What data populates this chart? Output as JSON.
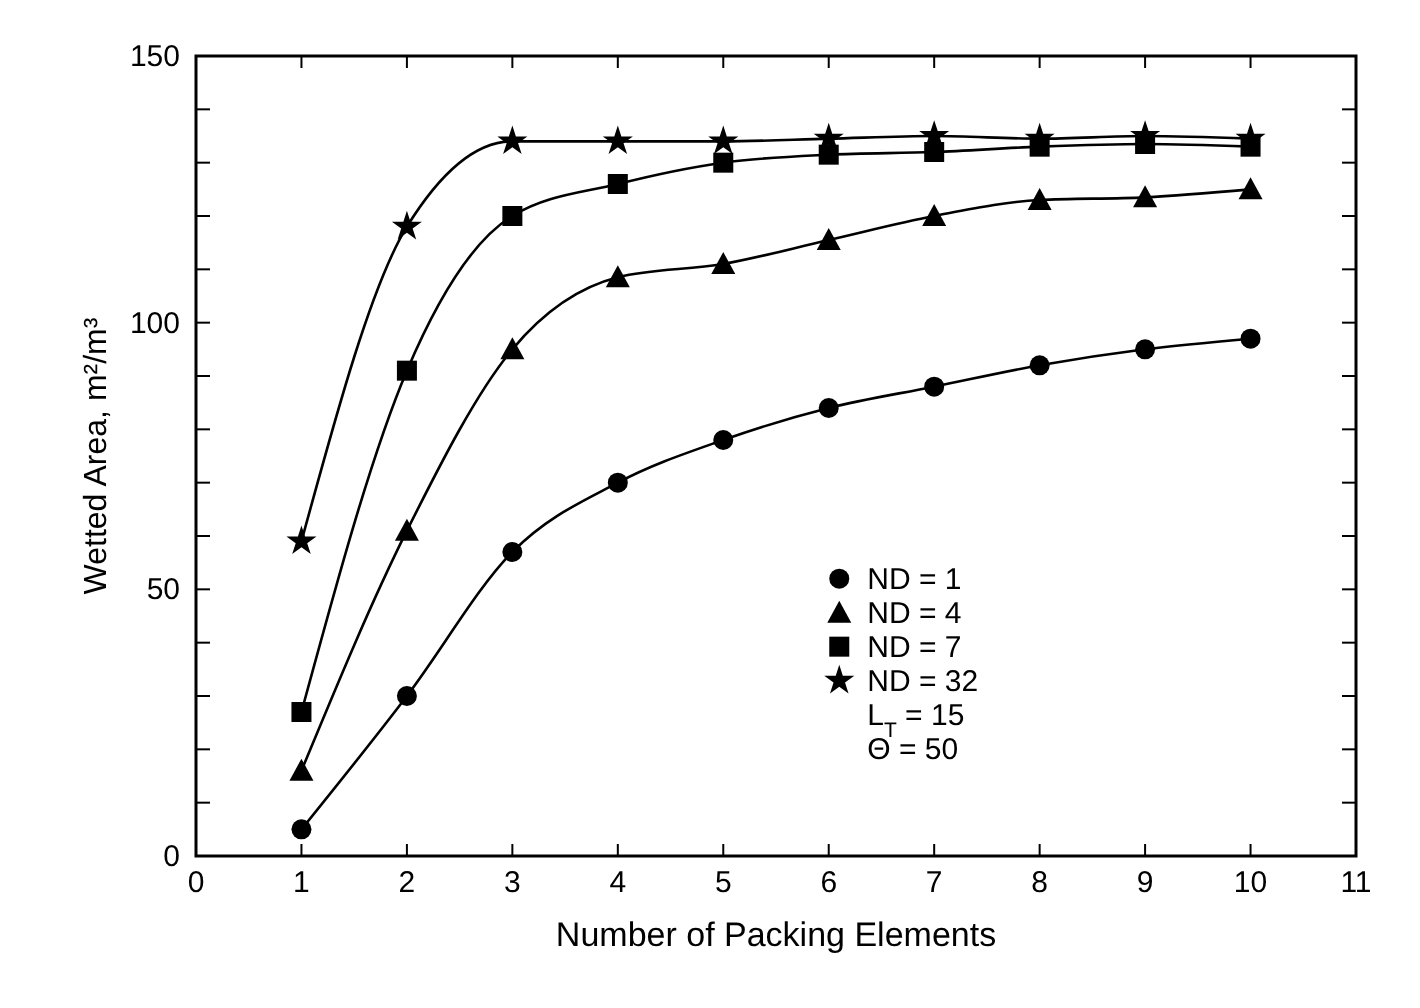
{
  "chart_data": {
    "type": "line",
    "xlabel": "Number of Packing Elements",
    "ylabel": "Wetted Area, m²/m³",
    "x": [
      1,
      2,
      3,
      4,
      5,
      6,
      7,
      8,
      9,
      10
    ],
    "xlim": [
      0,
      11
    ],
    "xticks": [
      0,
      1,
      2,
      3,
      4,
      5,
      6,
      7,
      8,
      9,
      10,
      11
    ],
    "ylim": [
      0,
      150
    ],
    "yticks": [
      0,
      {
        "value": 10,
        "label": null
      },
      {
        "value": 20,
        "label": null
      },
      {
        "value": 30,
        "label": null
      },
      {
        "value": 40,
        "label": null
      },
      50,
      {
        "value": 60,
        "label": null
      },
      {
        "value": 70,
        "label": null
      },
      {
        "value": 80,
        "label": null
      },
      {
        "value": 90,
        "label": null
      },
      100,
      {
        "value": 110,
        "label": null
      },
      {
        "value": 120,
        "label": null
      },
      {
        "value": 130,
        "label": null
      },
      {
        "value": 140,
        "label": null
      },
      150
    ],
    "grid": false,
    "legend": "bottom right",
    "series": [
      {
        "name": "ND = 1",
        "color": "#000000",
        "marker": "circle",
        "values": [
          5,
          30,
          57,
          70,
          78,
          84,
          88,
          92,
          95,
          97
        ]
      },
      {
        "name": "ND = 4",
        "color": "#000000",
        "marker": "triangle",
        "values": [
          16,
          61,
          95,
          108.5,
          111,
          115.5,
          120,
          123,
          123.5,
          125
        ]
      },
      {
        "name": "ND = 7",
        "color": "#000000",
        "marker": "square",
        "values": [
          27,
          91,
          120,
          126,
          130,
          131.5,
          132,
          133,
          133.5,
          133
        ]
      },
      {
        "name": "ND = 32",
        "color": "#000000",
        "marker": "star",
        "values": [
          59,
          118,
          134,
          134,
          134,
          134.5,
          135,
          134.5,
          135,
          134.5
        ]
      }
    ],
    "annotations": [
      "L$_{T}$ = 15",
      "Θ = 50"
    ]
  }
}
